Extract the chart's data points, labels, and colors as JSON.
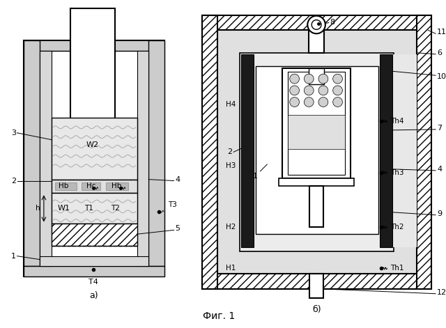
{
  "fig_width": 6.4,
  "fig_height": 4.71,
  "bg_color": "#ffffff",
  "title": "Фиг. 1",
  "label_a": "а)",
  "label_b": "б)"
}
